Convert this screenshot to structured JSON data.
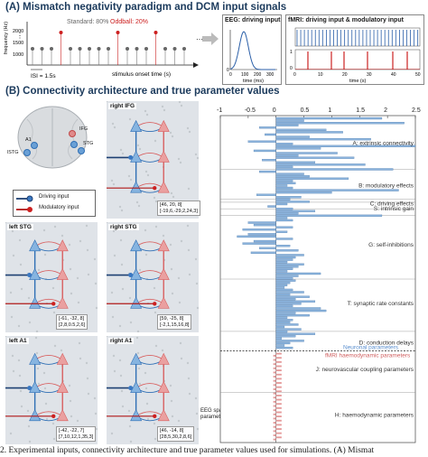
{
  "section_a": {
    "title": "(A) Mismatch negativity paradigm and DCM input signals",
    "standard_label": "Standard: 80%",
    "oddball_label": "Oddball: 20%",
    "isi_label": "ISI = 1.5s",
    "y_axis_label": "frequency (Hz)",
    "x_axis_label": "stimulus onset time (s)",
    "freq_ticks": [
      "2000",
      "1500",
      "1000"
    ],
    "eeg_title": "EEG: driving input",
    "eeg_xlabel": "time (ms)",
    "eeg_xticks": [
      "0",
      "100",
      "200",
      "300"
    ],
    "fmri_title": "fMRI: driving input & modulatory input",
    "fmri_xlabel": "time (s)",
    "fmri_xticks": [
      "0",
      "10",
      "20",
      "30",
      "40",
      "50"
    ],
    "fmri_yticks": [
      "1",
      "0"
    ],
    "eeg_ytick": "0",
    "colors": {
      "standard": "#666666",
      "oddball": "#cc2020",
      "eeg_curve": "#2b5fa8",
      "fmri_driving": "#2b5fa8",
      "fmri_modulatory": "#cc2020"
    }
  },
  "section_b": {
    "title": "(B) Connectivity architecture and true parameter values",
    "regions": {
      "ifg": "IFG",
      "stg": "STG",
      "a1": "A1",
      "istg": "lSTG",
      "right_ifg": "right IFG",
      "left_stg": "left STG",
      "right_stg": "right STG",
      "left_a1": "left A1",
      "right_a1": "right A1"
    },
    "coords": {
      "right_ifg": [
        "[46, 20, 8]",
        "[-19,6,-29,2,24,3]"
      ],
      "left_stg": [
        "[-61, -32, 8]",
        "[2,8,0.5,2,6]"
      ],
      "right_stg": [
        "[59, -25, 8]",
        "[-2,1,15,16,8]"
      ],
      "left_a1": [
        "[-42, -22, 7]",
        "[7,10,12,1,35,3]"
      ],
      "right_a1": [
        "[46, -14, 8]",
        "[28,5,30,2,8,6]"
      ]
    },
    "legend": {
      "driving": "Driving input",
      "modulatory": "Modulatory input"
    },
    "eeg_spatial_label": "EEG spatial parameters",
    "colors": {
      "forward": "#2f6fb5",
      "backward": "#d86060",
      "neuron_blue": "#86b4e0",
      "neuron_red": "#eaa0a0"
    }
  },
  "chart_data": {
    "type": "bar",
    "orientation": "horizontal",
    "xlim": [
      -1,
      2.5
    ],
    "xticks": [
      "-1",
      "-0.5",
      "0",
      "0.5",
      "1",
      "1.5",
      "2",
      "2.5"
    ],
    "groups": [
      "A: extrinsic connectivity",
      "B: modulatory effects",
      "C: driving effects",
      "S: intrinsic gain",
      "G: self-inhibitions",
      "T: synaptic rate constants",
      "D: conduction delays",
      "J: neurovascular coupling parameters",
      "H: haemodynamic parameters"
    ],
    "divider_labels": [
      "Neuronal parameters",
      "fMRI haemodynamic parameters"
    ],
    "neuronal_values": [
      1.9,
      0.5,
      2.3,
      0.4,
      -0.3,
      0.9,
      1.2,
      -0.2,
      0.6,
      1.7,
      -0.5,
      0.3,
      2.5,
      0.8,
      -0.4,
      1.1,
      0.4,
      1.4,
      -0.25,
      0.7,
      1.6,
      0.3,
      2.1,
      -0.3,
      0.5,
      0.6,
      1.3,
      0.3,
      0.35,
      0.2,
      0.3,
      2.2,
      1.0,
      -0.35,
      0.45,
      0.25,
      0.6,
      0.2,
      -0.15,
      0.3,
      0.7,
      0.4,
      1.9,
      0.2,
      0.3,
      -0.5,
      -0.4,
      0.3,
      -0.6,
      0.2,
      -0.5,
      -0.7,
      0.3,
      -0.4,
      -0.6,
      0.25,
      -0.3,
      0.4,
      -0.45,
      0.5,
      0.35,
      0.3,
      0.2,
      0.5,
      0.4,
      0.3,
      0.2,
      0.8,
      0.4,
      0.3,
      0.35,
      0.25,
      0.2,
      0.15,
      0.3,
      0.5,
      0.25,
      0.6,
      0.35,
      0.7,
      0.45,
      0.3,
      0.8,
      0.9,
      0.35,
      0.6,
      0.2,
      0.3,
      0.25,
      0.4,
      0.15,
      0.45,
      0.2,
      0.7,
      0.35,
      0.1,
      0.5,
      0.25,
      0.15,
      0.3
    ],
    "fmri_values": [
      0.1,
      -0.05,
      0.1,
      -0.05,
      0.1,
      -0.05,
      0.1,
      -0.05,
      0.1,
      -0.05,
      0.1,
      -0.05,
      0.1,
      -0.05,
      0.1,
      -0.05,
      0.1,
      -0.05,
      0.1,
      -0.05,
      0.1,
      -0.05,
      0.1,
      -0.05,
      0.1,
      -0.05,
      0.1,
      -0.05,
      0.1,
      -0.05,
      0.1,
      -0.05,
      0.1,
      -0.05,
      0.1,
      -0.05,
      0.1,
      -0.05,
      0.1,
      -0.05,
      0.1,
      -0.05
    ],
    "colors": {
      "neuronal": "#8bb3dc",
      "neuronal_edge": "#3f6fa3",
      "fmri": "#e59a9a"
    }
  },
  "caption": "2. Experimental inputs, connectivity architecture and true parameter values used for simulations. (A) Mismat"
}
